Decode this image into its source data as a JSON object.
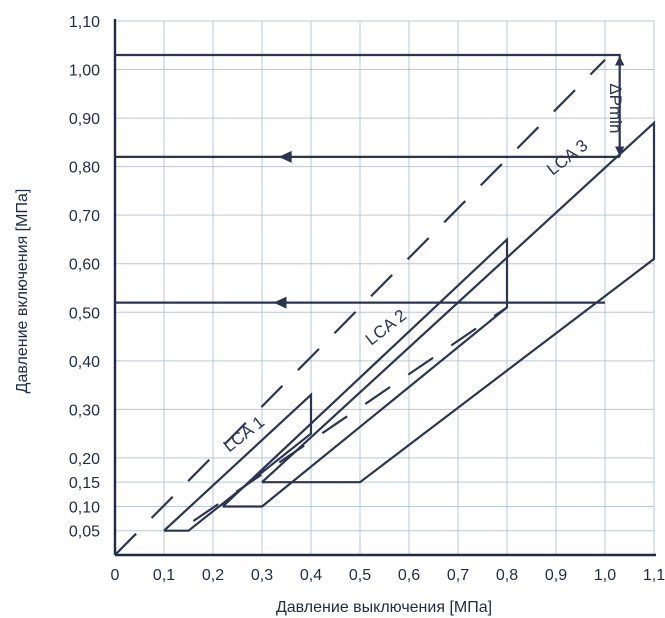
{
  "chart_data": {
    "type": "line",
    "title": "",
    "xlabel": "Давление выключения  [МПа]",
    "ylabel": "Давление включения [МПа]",
    "xlim": [
      0,
      1.1
    ],
    "ylim": [
      0,
      1.1
    ],
    "x_ticks": [
      {
        "value": 0,
        "label": "0"
      },
      {
        "value": 0.1,
        "label": "0,1"
      },
      {
        "value": 0.2,
        "label": "0,2"
      },
      {
        "value": 0.3,
        "label": "0,3"
      },
      {
        "value": 0.4,
        "label": "0,4"
      },
      {
        "value": 0.5,
        "label": "0,5"
      },
      {
        "value": 0.6,
        "label": "0,6"
      },
      {
        "value": 0.7,
        "label": "0,7"
      },
      {
        "value": 0.8,
        "label": "0,8"
      },
      {
        "value": 0.9,
        "label": "0,9"
      },
      {
        "value": 1.0,
        "label": "1,0"
      },
      {
        "value": 1.1,
        "label": "1,1"
      }
    ],
    "y_ticks": [
      {
        "value": 0.05,
        "label": "0,05"
      },
      {
        "value": 0.1,
        "label": "0,10"
      },
      {
        "value": 0.15,
        "label": "0,15"
      },
      {
        "value": 0.2,
        "label": "0,20"
      },
      {
        "value": 0.3,
        "label": "0,30"
      },
      {
        "value": 0.4,
        "label": "0,40"
      },
      {
        "value": 0.5,
        "label": "0,50"
      },
      {
        "value": 0.6,
        "label": "0,60"
      },
      {
        "value": 0.7,
        "label": "0,70"
      },
      {
        "value": 0.8,
        "label": "0,80"
      },
      {
        "value": 0.9,
        "label": "0,90"
      },
      {
        "value": 1.0,
        "label": "1,00"
      },
      {
        "value": 1.1,
        "label": "1,10"
      }
    ],
    "grid": true,
    "series": [
      {
        "name": "LCA 1",
        "style": "solid",
        "points": [
          [
            0.1,
            0.05
          ],
          [
            0.15,
            0.05
          ],
          [
            0.4,
            0.25
          ],
          [
            0.4,
            0.33
          ],
          [
            0.1,
            0.05
          ]
        ]
      },
      {
        "name": "LCA 2",
        "style": "solid",
        "points": [
          [
            0.22,
            0.1
          ],
          [
            0.3,
            0.1
          ],
          [
            0.8,
            0.51
          ],
          [
            0.8,
            0.65
          ],
          [
            0.22,
            0.1
          ]
        ]
      },
      {
        "name": "LCA 3",
        "style": "solid",
        "points": [
          [
            0.3,
            0.15
          ],
          [
            0.5,
            0.15
          ],
          [
            1.1,
            0.61
          ],
          [
            1.1,
            0.89
          ],
          [
            0.3,
            0.15
          ]
        ]
      },
      {
        "style": "dashed",
        "points": [
          [
            0.0,
            0.0
          ],
          [
            1.0,
            1.02
          ]
        ]
      },
      {
        "style": "dashed",
        "points": [
          [
            0.16,
            0.07
          ],
          [
            0.8,
            0.51
          ]
        ]
      }
    ],
    "guides": [
      {
        "style": "solid",
        "points": [
          [
            0.0,
            1.03
          ],
          [
            1.03,
            1.03
          ],
          [
            1.03,
            0.82
          ]
        ]
      },
      {
        "style": "arrow",
        "points": [
          [
            1.03,
            0.82
          ],
          [
            0.0,
            0.82
          ]
        ],
        "arrow_at": 0.35
      },
      {
        "style": "arrow",
        "points": [
          [
            1.0,
            0.52
          ],
          [
            0.0,
            0.52
          ]
        ],
        "arrow_at": 0.35
      }
    ],
    "annotations": [
      {
        "text": "LCA 1",
        "x": 0.27,
        "y": 0.24,
        "angle": 38
      },
      {
        "text": "LCA 2",
        "x": 0.56,
        "y": 0.46,
        "angle": 38
      },
      {
        "text": "LCA 3",
        "x": 0.93,
        "y": 0.81,
        "angle": 38
      },
      {
        "text": "ΔPmin",
        "x": 1.01,
        "y": 0.92,
        "angle": -90,
        "dimension": [
          [
            1.03,
            1.03
          ],
          [
            1.03,
            0.82
          ]
        ]
      }
    ],
    "colors": {
      "axis": "#1f2a44",
      "grid": "#b9c6dc",
      "line": "#2b3552"
    }
  }
}
